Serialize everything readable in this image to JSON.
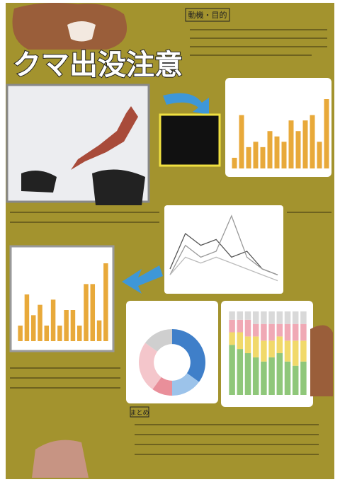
{
  "poster": {
    "title": "クマ出没注意",
    "motive_heading": "動機・目的",
    "summary_heading": "まとめ"
  },
  "charts": [
    {
      "type": "bar",
      "color": "#e8a93a",
      "values": [
        2,
        10,
        4,
        5,
        4,
        7,
        6,
        5,
        9,
        7,
        9,
        10,
        5,
        13
      ]
    },
    {
      "type": "line",
      "series": [
        {
          "color": "#555555",
          "values": [
            3,
            9,
            7,
            8,
            5,
            6,
            3,
            2
          ]
        },
        {
          "color": "#999999",
          "values": [
            2,
            7,
            5,
            6,
            12,
            5,
            3,
            2
          ]
        },
        {
          "color": "#bbbbbb",
          "values": [
            2,
            5,
            4,
            5,
            4,
            3,
            2,
            1
          ]
        }
      ]
    },
    {
      "type": "bar",
      "color": "#e8a93a",
      "values": [
        3,
        9,
        5,
        7,
        3,
        8,
        3,
        6,
        6,
        3,
        11,
        11,
        4,
        15
      ]
    },
    {
      "type": "pie",
      "values": [
        35,
        15,
        10,
        25,
        15
      ],
      "colors": [
        "#3f7fc9",
        "#9cc3ea",
        "#e98f9a",
        "#f4c6cb",
        "#cfcfcf"
      ]
    },
    {
      "type": "stacked",
      "series": [
        {
          "color": "#8fc77a",
          "values": [
            60,
            55,
            50,
            45,
            40,
            45,
            50,
            40,
            35,
            40
          ]
        },
        {
          "color": "#f1d96a",
          "values": [
            15,
            20,
            20,
            25,
            25,
            20,
            20,
            25,
            30,
            25
          ]
        },
        {
          "color": "#f0a9b5",
          "values": [
            15,
            15,
            20,
            15,
            20,
            20,
            15,
            20,
            20,
            20
          ]
        },
        {
          "color": "#d9d9d9",
          "values": [
            10,
            10,
            10,
            15,
            15,
            15,
            15,
            15,
            15,
            15
          ]
        }
      ]
    }
  ]
}
